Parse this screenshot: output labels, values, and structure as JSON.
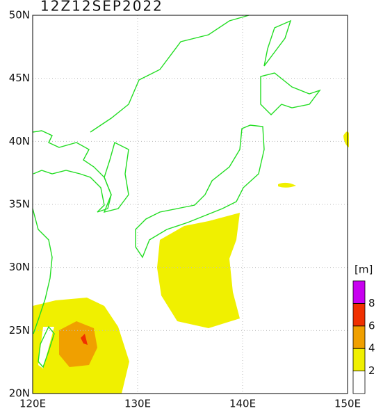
{
  "title": "12Z12SEP2022",
  "map": {
    "lonlim": [
      120,
      150
    ],
    "latlim": [
      20,
      50
    ],
    "lon_ticks": [
      {
        "value": 120,
        "label": "120E"
      },
      {
        "value": 130,
        "label": "130E"
      },
      {
        "value": 140,
        "label": "140E"
      },
      {
        "value": 150,
        "label": "150E"
      }
    ],
    "lat_ticks": [
      {
        "value": 20,
        "label": "20N"
      },
      {
        "value": 25,
        "label": "25N"
      },
      {
        "value": 30,
        "label": "30N"
      },
      {
        "value": 35,
        "label": "35N"
      },
      {
        "value": 40,
        "label": "40N"
      },
      {
        "value": 45,
        "label": "45N"
      },
      {
        "value": 50,
        "label": "50N"
      }
    ]
  },
  "colorbar": {
    "unit": "[m]",
    "levels": [
      2,
      4,
      6,
      8
    ],
    "colors": [
      "#ffffff",
      "#f0f000",
      "#f0a000",
      "#f03000",
      "#c800f0"
    ]
  }
}
